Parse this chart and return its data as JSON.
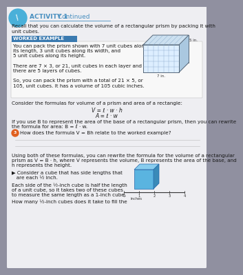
{
  "outer_bg": "#9090a0",
  "page_bg": "#eeeef2",
  "header_icon_color": "#4ab0d9",
  "header_title_bold": "ACTIVITY 1",
  "header_title_normal": " Continued",
  "header_title_color": "#4a90c0",
  "underline_color": "#4a90c0",
  "intro_text_line1": "Recall that you can calculate the volume of a rectangular prism by packing it with",
  "intro_text_line2": "unit cubes.",
  "worked_example_bg": "#3a7ab0",
  "worked_example_label": "WORKED EXAMPLE",
  "worked_box_bg": "#f8f8f8",
  "we_lines": [
    "You can pack the prism shown with 7 unit cubes along",
    "its length, 3 unit cubes along its width, and",
    "5 unit cubes along its height.",
    "",
    "There are 7 × 3, or 21, unit cubes in each layer and",
    "there are 5 layers of cubes.",
    "",
    "So, you can pack the prism with a total of 21 × 5, or",
    "105, unit cubes. It has a volume of 105 cubic inches."
  ],
  "formula_intro": "Consider the formulas for volume of a prism and area of a rectangle:",
  "formula1": "V = ℓ · w · h",
  "formula2": "A = ℓ · w",
  "rewrite_line1": "If you use B to represent the area of the base of a rectangular prism, then you can rewrite",
  "rewrite_line2": "the formula for area: B = ℓ · w.",
  "q3_color": "#e06020",
  "q3_text": "How does the formula V = Bh relate to the worked example?",
  "using_line1": "Using both of these formulas, you can rewrite the formula for the volume of a rectangular",
  "using_line2": "prism as V = B · h, where V represents the volume, B represents the area of the base, and",
  "using_line3": "h represents the height.",
  "consider_line1": "▶ Consider a cube that has side lengths that",
  "consider_line2": "   are each ½ inch.",
  "each_line1": "Each side of the ½-inch cube is half the length",
  "each_line2": "of a unit cube, so it takes two of these cubes",
  "each_line3": "to measure the same length as a 1-inch cube.",
  "how_many": "How many ½-inch cubes does it take to fill the",
  "text_color": "#1a1a1a",
  "med_text_color": "#333333",
  "light_gray": "#cccccc",
  "prism_color": "#aaccdd",
  "prism_line": "#556677",
  "cube_front": "#5ab4e0",
  "cube_top": "#88ccee",
  "cube_right": "#3a8ab8"
}
